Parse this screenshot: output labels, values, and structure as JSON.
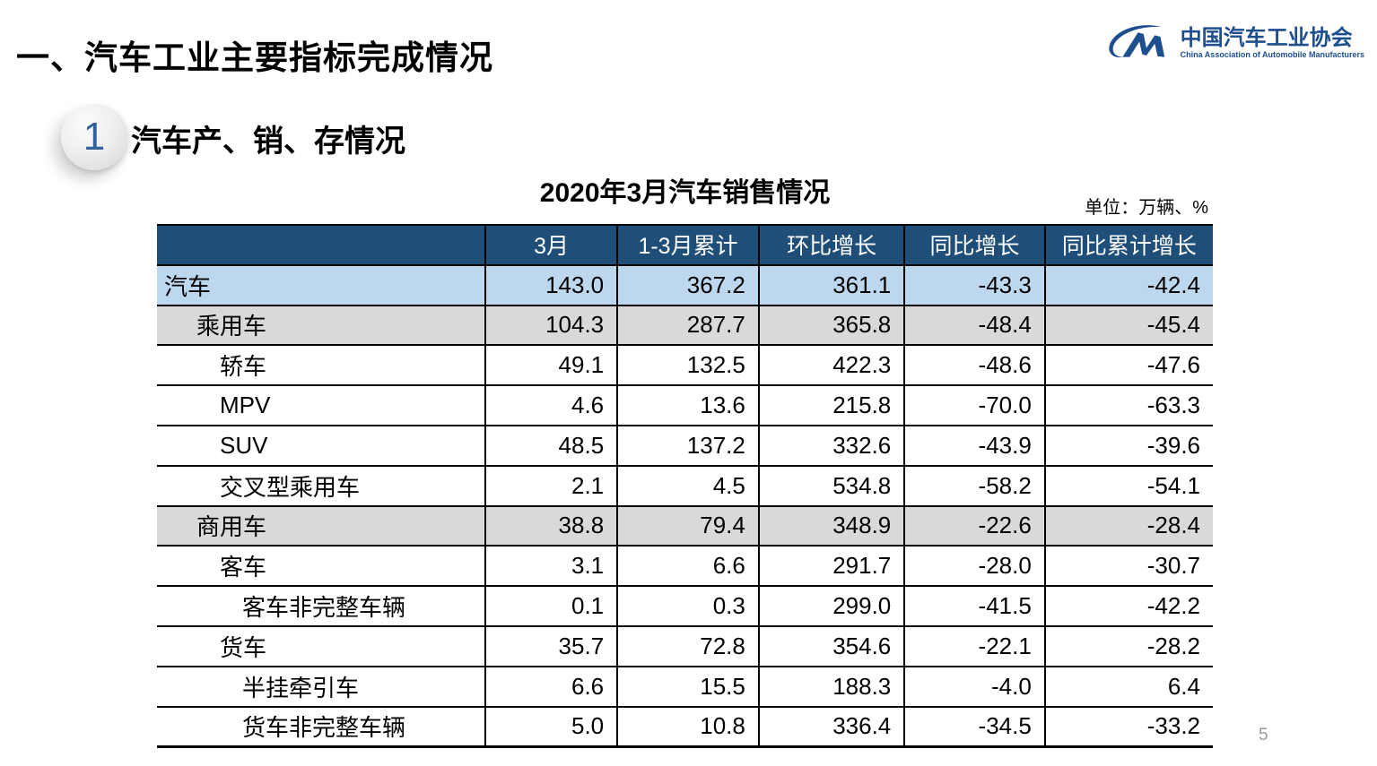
{
  "slide": {
    "main_title": "一、汽车工业主要指标完成情况",
    "section_number": "1",
    "section_title": "汽车产、销、存情况",
    "page_number": "5"
  },
  "logo": {
    "icon": "cam-swoosh-monogram",
    "name_cn": "中国汽车工业协会",
    "name_en": "China Association of Automobile Manufacturers"
  },
  "table": {
    "title": "2020年3月汽车销售情况",
    "unit_label": "单位：万辆、%",
    "columns": [
      "",
      "3月",
      "1-3月累计",
      "环比增长",
      "同比增长",
      "同比累计增长"
    ],
    "rows": [
      {
        "label": "汽车",
        "indent": 0,
        "style": "blue",
        "values": [
          "143.0",
          "367.2",
          "361.1",
          "-43.3",
          "-42.4"
        ]
      },
      {
        "label": "乘用车",
        "indent": 1,
        "style": "gray",
        "values": [
          "104.3",
          "287.7",
          "365.8",
          "-48.4",
          "-45.4"
        ]
      },
      {
        "label": "轿车",
        "indent": 2,
        "style": "white",
        "values": [
          "49.1",
          "132.5",
          "422.3",
          "-48.6",
          "-47.6"
        ]
      },
      {
        "label": "MPV",
        "indent": 2,
        "style": "white",
        "values": [
          "4.6",
          "13.6",
          "215.8",
          "-70.0",
          "-63.3"
        ]
      },
      {
        "label": "SUV",
        "indent": 2,
        "style": "white",
        "values": [
          "48.5",
          "137.2",
          "332.6",
          "-43.9",
          "-39.6"
        ]
      },
      {
        "label": "交叉型乘用车",
        "indent": 2,
        "style": "white",
        "values": [
          "2.1",
          "4.5",
          "534.8",
          "-58.2",
          "-54.1"
        ]
      },
      {
        "label": "商用车",
        "indent": 1,
        "style": "gray",
        "values": [
          "38.8",
          "79.4",
          "348.9",
          "-22.6",
          "-28.4"
        ]
      },
      {
        "label": "客车",
        "indent": 2,
        "style": "white",
        "values": [
          "3.1",
          "6.6",
          "291.7",
          "-28.0",
          "-30.7"
        ]
      },
      {
        "label": "客车非完整车辆",
        "indent": 3,
        "style": "white",
        "values": [
          "0.1",
          "0.3",
          "299.0",
          "-41.5",
          "-42.2"
        ]
      },
      {
        "label": "货车",
        "indent": 2,
        "style": "white",
        "values": [
          "35.7",
          "72.8",
          "354.6",
          "-22.1",
          "-28.2"
        ]
      },
      {
        "label": "半挂牵引车",
        "indent": 3,
        "style": "white",
        "values": [
          "6.6",
          "15.5",
          "188.3",
          "-4.0",
          "6.4"
        ]
      },
      {
        "label": "货车非完整车辆",
        "indent": 3,
        "style": "white",
        "values": [
          "5.0",
          "10.8",
          "336.4",
          "-34.5",
          "-33.2"
        ]
      }
    ]
  },
  "colors": {
    "header_bg": "#1F4E79",
    "header_text": "#FFFFFF",
    "row_highlight_blue": "#BDD7EE",
    "row_highlight_gray": "#D9D9D9",
    "logo_blue": "#1F4E8F",
    "badge_number_blue": "#31609B",
    "border_black": "#000000"
  }
}
